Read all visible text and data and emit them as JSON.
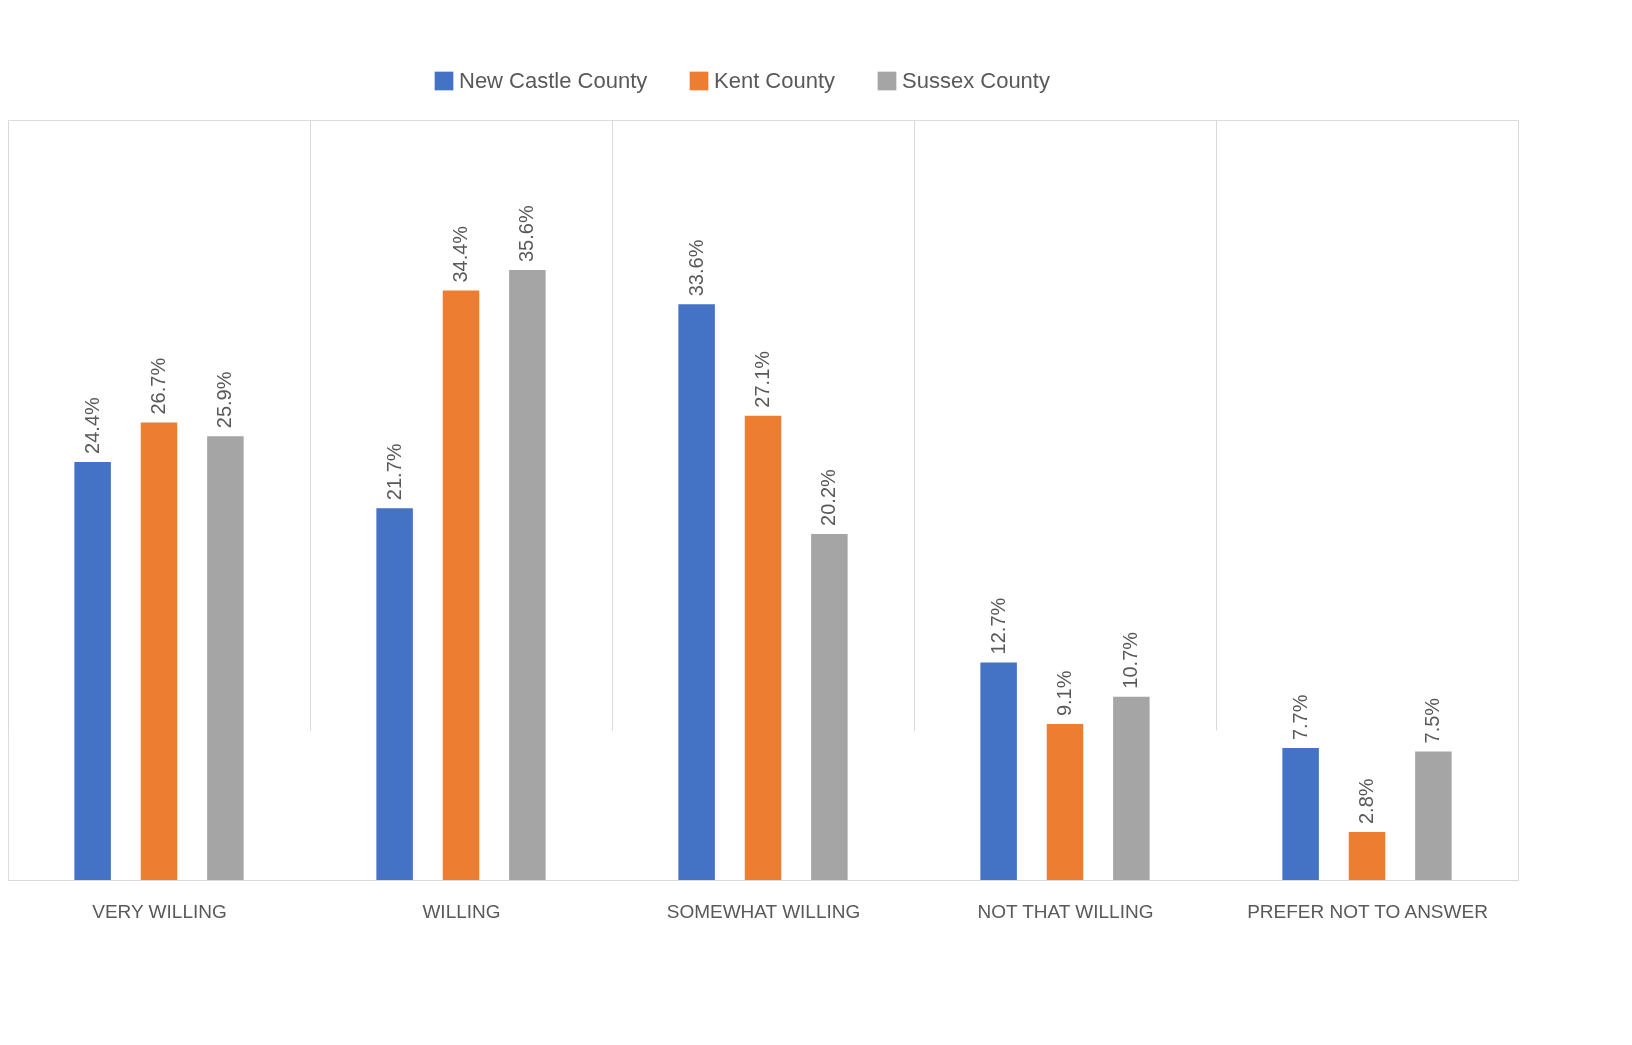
{
  "chart_data": {
    "type": "bar",
    "categories": [
      "VERY WILLING",
      "WILLING",
      "SOMEWHAT WILLING",
      "NOT THAT WILLING",
      "PREFER NOT TO ANSWER"
    ],
    "series": [
      {
        "name": "New Castle County",
        "color": "#4472c4",
        "values": [
          24.4,
          21.7,
          33.6,
          12.7,
          7.7
        ],
        "value_labels": [
          "24.4%",
          "21.7%",
          "33.6%",
          "12.7%",
          "7.7%"
        ]
      },
      {
        "name": "Kent County",
        "color": "#ed7d31",
        "values": [
          26.7,
          34.4,
          27.1,
          9.1,
          2.8
        ],
        "value_labels": [
          "26.7%",
          "34.4%",
          "27.1%",
          "9.1%",
          "2.8%"
        ]
      },
      {
        "name": "Sussex County",
        "color": "#a5a5a5",
        "values": [
          25.9,
          35.6,
          20.2,
          10.7,
          7.5
        ],
        "value_labels": [
          "25.9%",
          "35.6%",
          "20.2%",
          "10.7%",
          "7.5%"
        ]
      }
    ],
    "legend": "top",
    "grid": "x",
    "tick_labels": "x"
  }
}
